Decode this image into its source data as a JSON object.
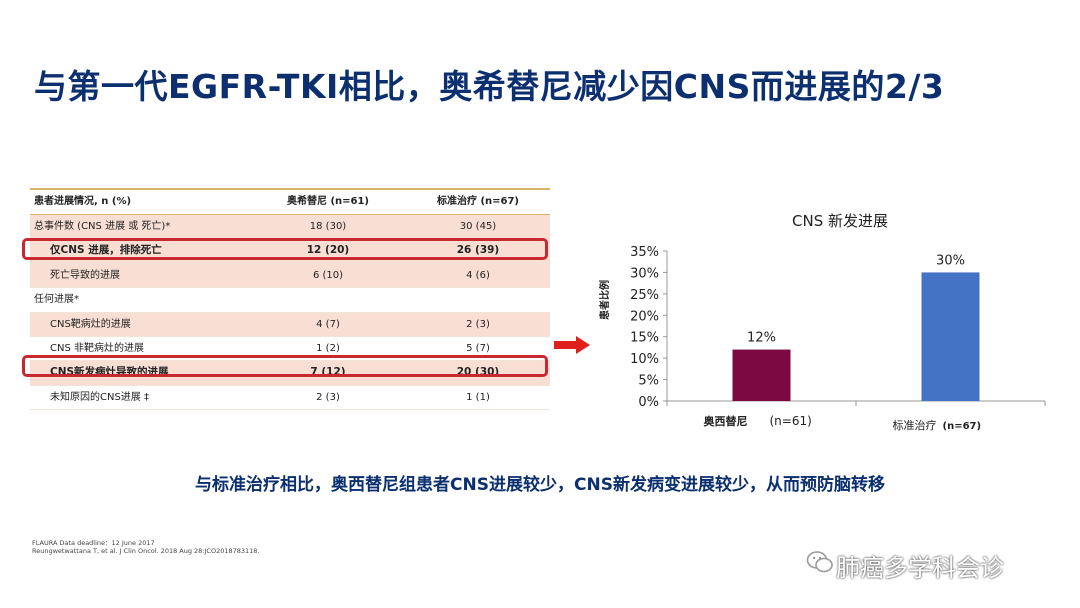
{
  "slide": {
    "title": "与第一代EGFR-TKI相比，奥希替尼减少因CNS而进展的2/3",
    "summary": "与标准治疗相比，奥西替尼组患者CNS进展较少，CNS新发病变进展较少，从而预防脑转移",
    "references": [
      "FLAURA Data deadline：12 June 2017",
      "Reungwetwattana T, et al. J Clin Oncol. 2018 Aug 28:JCO2018783118."
    ],
    "watermark": "肺癌多学科会诊"
  },
  "table": {
    "headers": [
      "患者进展情况, n (%)",
      "奥希替尼 (n=61)",
      "标准治疗 (n=67)"
    ],
    "rows": [
      {
        "label": "总事件数 (CNS 进展 或 死亡)*",
        "a": "18 (30)",
        "b": "30 (45)",
        "indent": 0,
        "shade": true,
        "highlight": false
      },
      {
        "label": "仅CNS 进展，排除死亡",
        "a": "12 (20)",
        "b": "26 (39)",
        "indent": 1,
        "shade": true,
        "highlight": true
      },
      {
        "label": "死亡导致的进展",
        "a": "6 (10)",
        "b": "4 (6)",
        "indent": 1,
        "shade": true,
        "highlight": false
      },
      {
        "label": "任何进展*",
        "a": "",
        "b": "",
        "indent": 0,
        "shade": false,
        "highlight": false
      },
      {
        "label": "CNS靶病灶的进展",
        "a": "4 (7)",
        "b": "2 (3)",
        "indent": 1,
        "shade": true,
        "highlight": false
      },
      {
        "label": "CNS 非靶病灶的进展",
        "a": "1 (2)",
        "b": "5 (7)",
        "indent": 1,
        "shade": false,
        "highlight": false
      },
      {
        "label": "CNS新发病灶导致的进展",
        "a": "7 (12)",
        "b": "20 (30)",
        "indent": 1,
        "shade": true,
        "highlight": true
      },
      {
        "label": "未知原因的CNS进展 ‡",
        "a": "2 (3)",
        "b": "1 (1)",
        "indent": 1,
        "shade": false,
        "highlight": false
      }
    ]
  },
  "chart_data": {
    "type": "bar",
    "title": "CNS 新发进展",
    "ylabel": "患者比例",
    "categories": [
      "奥西替尼",
      "标准治疗"
    ],
    "category_notes": [
      "(n=61)",
      "(n=67)"
    ],
    "values": [
      12,
      30
    ],
    "data_labels": [
      "12%",
      "30%"
    ],
    "colors": [
      "#7b0a42",
      "#4472c4"
    ],
    "ylim": [
      0,
      35
    ],
    "yticks": [
      0,
      5,
      10,
      15,
      20,
      25,
      30,
      35
    ],
    "ytick_labels": [
      "0%",
      "5%",
      "10%",
      "15%",
      "20%",
      "25%",
      "30%",
      "35%"
    ],
    "grid": false,
    "legend": "none"
  },
  "colors": {
    "title": "#0b2f6f",
    "highlight_border": "#c8282f",
    "row_shade": "#f8ded3",
    "header_rule": "#d7b46a"
  }
}
